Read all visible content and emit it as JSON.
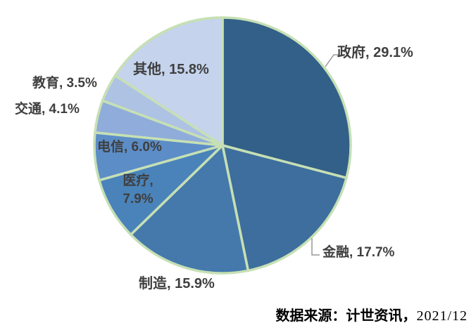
{
  "chart_data": {
    "type": "pie",
    "title": "",
    "unit": "%",
    "direction": "clockwise",
    "start_angle_deg": 0,
    "border_color": "#C6E0B4",
    "label_color": "#3F3F3F",
    "leader_line_color": "#999999",
    "slices": [
      {
        "name": "政府",
        "value": 29.1,
        "label": "政府, 29.1%",
        "color": "#336089",
        "label_position": "outside-with-leader"
      },
      {
        "name": "金融",
        "value": 17.7,
        "label": "金融, 17.7%",
        "color": "#3D6E9E",
        "label_position": "outside-with-leader"
      },
      {
        "name": "制造",
        "value": 15.9,
        "label": "制造, 15.9%",
        "color": "#4579AC",
        "label_position": "outside"
      },
      {
        "name": "医疗",
        "value": 7.9,
        "label": "医疗, 7.9%",
        "color": "#4A83BA",
        "label_position": "inside"
      },
      {
        "name": "电信",
        "value": 6.0,
        "label": "电信, 6.0%",
        "color": "#5C8DC7",
        "label_position": "inside"
      },
      {
        "name": "交通",
        "value": 4.1,
        "label": "交通, 4.1%",
        "color": "#8FACDA",
        "label_position": "outside"
      },
      {
        "name": "教育",
        "value": 3.5,
        "label": "教育, 3.5%",
        "color": "#AEC2E4",
        "label_position": "outside"
      },
      {
        "name": "其他",
        "value": 15.8,
        "label": "其他, 15.8%",
        "color": "#C5D3EC",
        "label_position": "inside"
      }
    ]
  },
  "source_note": {
    "prefix": "数据来源：计世资讯，",
    "date": "2021/12"
  }
}
